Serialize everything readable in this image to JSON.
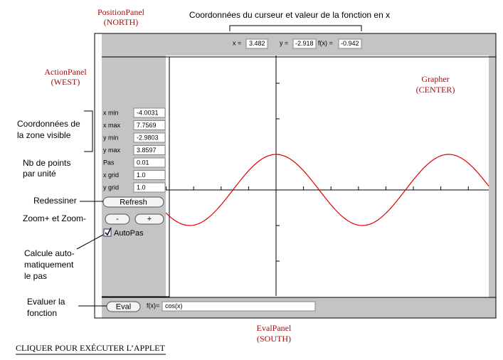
{
  "annotations": {
    "position_panel": [
      "PositionPanel",
      "(NORTH)"
    ],
    "cursor_note": "Coordonnées du curseur et valeur de la fonction en x",
    "action_panel": [
      "ActionPanel",
      "(WEST)"
    ],
    "grapher": [
      "Grapher",
      "(CENTER)"
    ],
    "eval_panel": [
      "EvalPanel",
      "(SOUTH)"
    ],
    "visible_zone": [
      "Coordonnées de",
      "la zone visible"
    ],
    "points_per_unit": [
      "Nb de points",
      "par unité"
    ],
    "redraw": "Redessiner",
    "zoom": "Zoom+ et Zoom-",
    "auto_step": [
      "Calcule auto-",
      "matiquement",
      "le pas"
    ],
    "evaluate": [
      "Evaluer la",
      "fonction"
    ]
  },
  "north": {
    "x_label": "x =",
    "x": "3.482",
    "y_label": "y =",
    "y": "-2.918",
    "fx_label": "f(x) =",
    "fx": "-0.942"
  },
  "west": {
    "fields": [
      {
        "label": "x min",
        "value": "-4.0031"
      },
      {
        "label": "x max",
        "value": "7.7569"
      },
      {
        "label": "y min",
        "value": "-2.9803"
      },
      {
        "label": "y max",
        "value": "3.8597"
      },
      {
        "label": "Pas",
        "value": "0.01"
      },
      {
        "label": "x grid",
        "value": "1.0"
      },
      {
        "label": "y grid",
        "value": "1.0"
      }
    ],
    "refresh": "Refresh",
    "zoom_out": "-",
    "zoom_in": "+",
    "autopas": "AutoPas"
  },
  "south": {
    "eval": "Eval",
    "fx_label": "f(x)=",
    "expression": "cos(x)"
  },
  "footer_link": "CLIQUER POUR EXÉCUTER L’APPLET"
}
